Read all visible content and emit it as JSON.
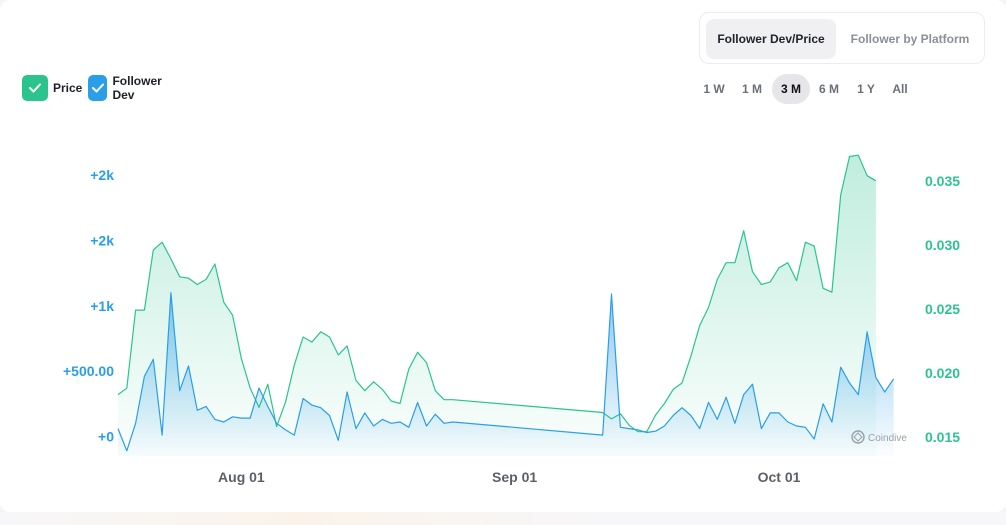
{
  "tabs": [
    {
      "label": "Follower Dev/Price",
      "active": true
    },
    {
      "label": "Follower by Platform",
      "active": false
    }
  ],
  "legend": [
    {
      "label": "Price",
      "color": "#2bc48f"
    },
    {
      "label": "Follower Dev",
      "color": "#2b9ee8"
    }
  ],
  "ranges": [
    {
      "label": "1 W",
      "active": false
    },
    {
      "label": "1 M",
      "active": false
    },
    {
      "label": "3 M",
      "active": true
    },
    {
      "label": "6 M",
      "active": false
    },
    {
      "label": "1 Y",
      "active": false
    },
    {
      "label": "All",
      "active": false
    }
  ],
  "watermark": "Coindive",
  "colors": {
    "price": "#2bc48f",
    "follower": "#2b9ee8",
    "left_axis": "#2b9ee8",
    "right_axis": "#2bc48f"
  },
  "chart_data": {
    "type": "area",
    "x_range": [
      "2024-07-18",
      "2024-10-17"
    ],
    "x_ticks": [
      {
        "date": "2024-08-01",
        "label": "Aug 01"
      },
      {
        "date": "2024-09-01",
        "label": "Sep 01"
      },
      {
        "date": "2024-10-01",
        "label": "Oct 01"
      }
    ],
    "y_left": {
      "label": "Follower Dev",
      "range": [
        -150,
        2300
      ],
      "ticks": [
        {
          "value": 0,
          "label": "+0"
        },
        {
          "value": 500,
          "label": "+500.00"
        },
        {
          "value": 1000,
          "label": "+1k"
        },
        {
          "value": 1500,
          "label": "+2k"
        },
        {
          "value": 2000,
          "label": "+2k"
        }
      ]
    },
    "y_right": {
      "label": "Price",
      "range": [
        0.0135,
        0.0385
      ],
      "ticks": [
        {
          "value": 0.015,
          "label": "0.015"
        },
        {
          "value": 0.02,
          "label": "0.020"
        },
        {
          "value": 0.025,
          "label": "0.025"
        },
        {
          "value": 0.03,
          "label": "0.030"
        },
        {
          "value": 0.035,
          "label": "0.035"
        }
      ]
    },
    "series": [
      {
        "name": "Price",
        "axis": "right",
        "points": [
          [
            "2024-07-18",
            0.0183
          ],
          [
            "2024-07-19",
            0.0188
          ],
          [
            "2024-07-20",
            0.0249
          ],
          [
            "2024-07-21",
            0.0249
          ],
          [
            "2024-07-22",
            0.0296
          ],
          [
            "2024-07-23",
            0.0302
          ],
          [
            "2024-07-24",
            0.0289
          ],
          [
            "2024-07-25",
            0.0275
          ],
          [
            "2024-07-26",
            0.0274
          ],
          [
            "2024-07-27",
            0.0269
          ],
          [
            "2024-07-28",
            0.0273
          ],
          [
            "2024-07-29",
            0.0285
          ],
          [
            "2024-07-30",
            0.0255
          ],
          [
            "2024-07-31",
            0.0245
          ],
          [
            "2024-08-01",
            0.0211
          ],
          [
            "2024-08-02",
            0.0188
          ],
          [
            "2024-08-03",
            0.0173
          ],
          [
            "2024-08-04",
            0.0191
          ],
          [
            "2024-08-05",
            0.0158
          ],
          [
            "2024-08-06",
            0.0177
          ],
          [
            "2024-08-07",
            0.0206
          ],
          [
            "2024-08-08",
            0.0228
          ],
          [
            "2024-08-09",
            0.0224
          ],
          [
            "2024-08-10",
            0.0232
          ],
          [
            "2024-08-11",
            0.0228
          ],
          [
            "2024-08-12",
            0.0214
          ],
          [
            "2024-08-13",
            0.0221
          ],
          [
            "2024-08-14",
            0.0194
          ],
          [
            "2024-08-15",
            0.0186
          ],
          [
            "2024-08-16",
            0.0193
          ],
          [
            "2024-08-17",
            0.0187
          ],
          [
            "2024-08-18",
            0.0178
          ],
          [
            "2024-08-19",
            0.0176
          ],
          [
            "2024-08-20",
            0.0203
          ],
          [
            "2024-08-21",
            0.0216
          ],
          [
            "2024-08-22",
            0.0208
          ],
          [
            "2024-08-23",
            0.0186
          ],
          [
            "2024-08-24",
            0.0179
          ],
          [
            "2024-08-25",
            0.0179
          ],
          [
            "2024-09-11",
            0.0169
          ],
          [
            "2024-09-12",
            0.0164
          ],
          [
            "2024-09-13",
            0.0168
          ],
          [
            "2024-09-14",
            0.0159
          ],
          [
            "2024-09-15",
            0.0154
          ],
          [
            "2024-09-16",
            0.0154
          ],
          [
            "2024-09-17",
            0.0167
          ],
          [
            "2024-09-18",
            0.0176
          ],
          [
            "2024-09-19",
            0.0187
          ],
          [
            "2024-09-20",
            0.0192
          ],
          [
            "2024-09-21",
            0.0213
          ],
          [
            "2024-09-22",
            0.0237
          ],
          [
            "2024-09-23",
            0.0251
          ],
          [
            "2024-09-24",
            0.0273
          ],
          [
            "2024-09-25",
            0.0286
          ],
          [
            "2024-09-26",
            0.0286
          ],
          [
            "2024-09-27",
            0.0311
          ],
          [
            "2024-09-28",
            0.0279
          ],
          [
            "2024-09-29",
            0.0269
          ],
          [
            "2024-09-30",
            0.0271
          ],
          [
            "2024-10-01",
            0.0282
          ],
          [
            "2024-10-02",
            0.0286
          ],
          [
            "2024-10-03",
            0.0272
          ],
          [
            "2024-10-04",
            0.0302
          ],
          [
            "2024-10-05",
            0.0299
          ],
          [
            "2024-10-06",
            0.0266
          ],
          [
            "2024-10-07",
            0.0263
          ],
          [
            "2024-10-08",
            0.0339
          ],
          [
            "2024-10-09",
            0.0369
          ],
          [
            "2024-10-10",
            0.037
          ],
          [
            "2024-10-11",
            0.0354
          ],
          [
            "2024-10-12",
            0.035
          ]
        ]
      },
      {
        "name": "Follower Dev",
        "axis": "left",
        "points": [
          [
            "2024-07-18",
            60
          ],
          [
            "2024-07-19",
            -110
          ],
          [
            "2024-07-20",
            100
          ],
          [
            "2024-07-21",
            460
          ],
          [
            "2024-07-22",
            590
          ],
          [
            "2024-07-23",
            10
          ],
          [
            "2024-07-24",
            1100
          ],
          [
            "2024-07-25",
            350
          ],
          [
            "2024-07-26",
            540
          ],
          [
            "2024-07-27",
            200
          ],
          [
            "2024-07-28",
            230
          ],
          [
            "2024-07-29",
            130
          ],
          [
            "2024-07-30",
            110
          ],
          [
            "2024-07-31",
            150
          ],
          [
            "2024-08-01",
            140
          ],
          [
            "2024-08-02",
            140
          ],
          [
            "2024-08-03",
            370
          ],
          [
            "2024-08-04",
            230
          ],
          [
            "2024-08-05",
            100
          ],
          [
            "2024-08-06",
            50
          ],
          [
            "2024-08-07",
            10
          ],
          [
            "2024-08-08",
            290
          ],
          [
            "2024-08-09",
            240
          ],
          [
            "2024-08-10",
            220
          ],
          [
            "2024-08-11",
            160
          ],
          [
            "2024-08-12",
            -30
          ],
          [
            "2024-08-13",
            340
          ],
          [
            "2024-08-14",
            60
          ],
          [
            "2024-08-15",
            180
          ],
          [
            "2024-08-16",
            80
          ],
          [
            "2024-08-17",
            130
          ],
          [
            "2024-08-18",
            100
          ],
          [
            "2024-08-19",
            110
          ],
          [
            "2024-08-20",
            70
          ],
          [
            "2024-08-21",
            260
          ],
          [
            "2024-08-22",
            80
          ],
          [
            "2024-08-23",
            170
          ],
          [
            "2024-08-24",
            100
          ],
          [
            "2024-08-25",
            110
          ],
          [
            "2024-09-11",
            10
          ],
          [
            "2024-09-12",
            1090
          ],
          [
            "2024-09-13",
            70
          ],
          [
            "2024-09-14",
            60
          ],
          [
            "2024-09-15",
            50
          ],
          [
            "2024-09-16",
            30
          ],
          [
            "2024-09-17",
            40
          ],
          [
            "2024-09-18",
            80
          ],
          [
            "2024-09-19",
            160
          ],
          [
            "2024-09-20",
            220
          ],
          [
            "2024-09-21",
            160
          ],
          [
            "2024-09-22",
            60
          ],
          [
            "2024-09-23",
            260
          ],
          [
            "2024-09-24",
            130
          ],
          [
            "2024-09-25",
            300
          ],
          [
            "2024-09-26",
            100
          ],
          [
            "2024-09-27",
            320
          ],
          [
            "2024-09-28",
            400
          ],
          [
            "2024-09-29",
            60
          ],
          [
            "2024-09-30",
            180
          ],
          [
            "2024-10-01",
            180
          ],
          [
            "2024-10-02",
            110
          ],
          [
            "2024-10-03",
            80
          ],
          [
            "2024-10-04",
            70
          ],
          [
            "2024-10-05",
            -20
          ],
          [
            "2024-10-06",
            250
          ],
          [
            "2024-10-07",
            110
          ],
          [
            "2024-10-08",
            530
          ],
          [
            "2024-10-09",
            410
          ],
          [
            "2024-10-10",
            320
          ],
          [
            "2024-10-11",
            800
          ],
          [
            "2024-10-12",
            450
          ],
          [
            "2024-10-13",
            340
          ],
          [
            "2024-10-14",
            440
          ]
        ]
      }
    ]
  }
}
